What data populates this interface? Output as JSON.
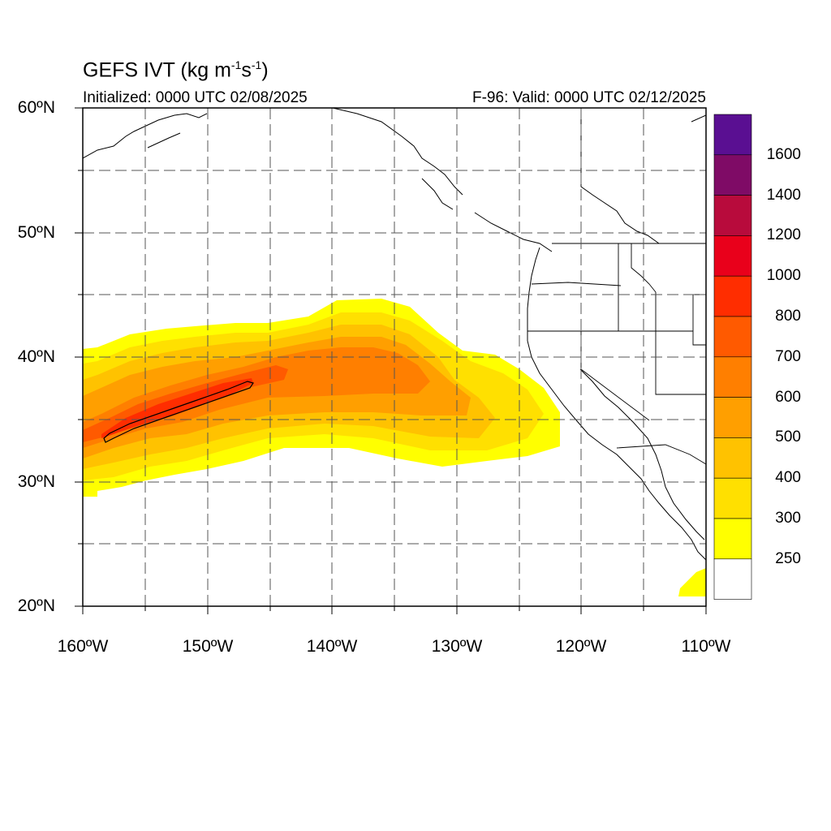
{
  "title": {
    "main": "GEFS IVT (kg m",
    "exp1": "-1",
    "mid": "s",
    "exp2": "-1",
    "end": ")"
  },
  "initialized": "Initialized: 0000 UTC 02/08/2025",
  "valid": "F-96: Valid: 0000 UTC 02/12/2025",
  "map": {
    "lon_range": [
      -160,
      -110
    ],
    "lat_range": [
      20,
      60
    ],
    "lat_labels": [
      "60ºN",
      "50ºN",
      "40ºN",
      "30ºN",
      "20ºN"
    ],
    "lon_labels": [
      "160ºW",
      "150ºW",
      "140ºW",
      "130ºW",
      "120ºW",
      "110ºW"
    ],
    "grid_lines": "dashed every 5°",
    "atmospheric_river_axis": "southwest to northeast from ~33°N 158°W toward ~39°N 138°W, extending to ~35°N 122°W"
  },
  "colorbar": {
    "labels": [
      "1600",
      "1400",
      "1200",
      "1000",
      "800",
      "700",
      "600",
      "500",
      "400",
      "300",
      "250"
    ],
    "colors": [
      "#5a0f92",
      "#7f0b66",
      "#b80b3c",
      "#e9001b",
      "#ff2d00",
      "#ff5a00",
      "#ff7f00",
      "#ff9f00",
      "#ffc200",
      "#ffe000",
      "#ffff00",
      "#ffffff"
    ]
  }
}
